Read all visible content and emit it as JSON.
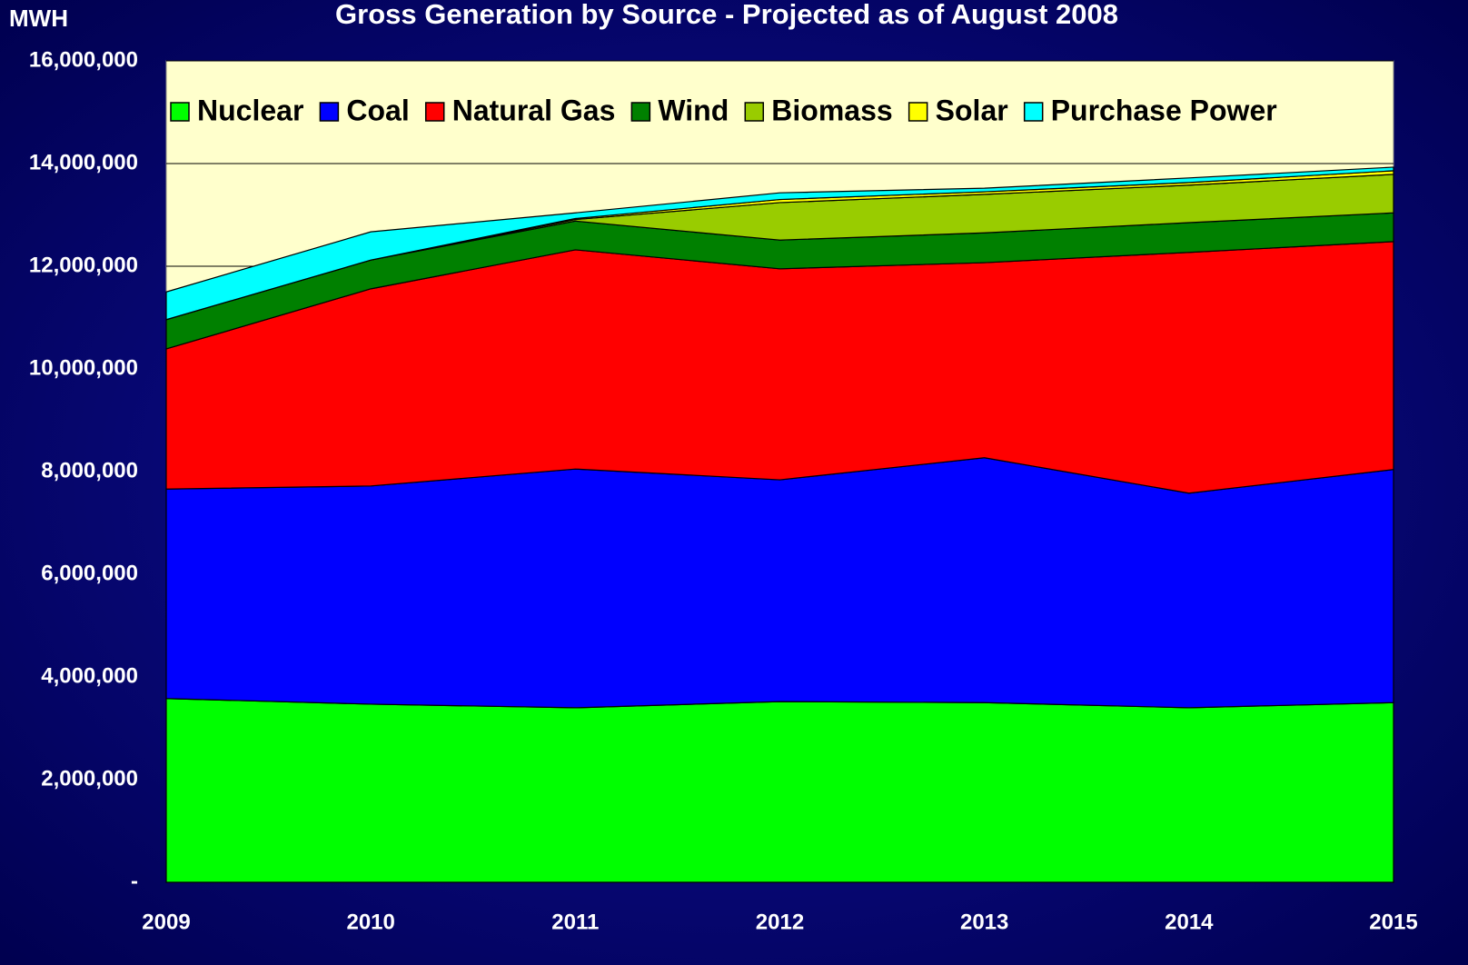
{
  "chart_data": {
    "type": "stacked_area",
    "title": "Gross Generation by Source - Projected as of August 2008",
    "y_label": "MWH",
    "categories": [
      "2009",
      "2010",
      "2011",
      "2012",
      "2013",
      "2014",
      "2015"
    ],
    "series": [
      {
        "name": "Nuclear",
        "color": "#00ff00",
        "values": [
          3580000,
          3470000,
          3400000,
          3520000,
          3500000,
          3400000,
          3500000
        ]
      },
      {
        "name": "Coal",
        "color": "#0000ff",
        "values": [
          4080000,
          4250000,
          4650000,
          4320000,
          4770000,
          4180000,
          4540000
        ]
      },
      {
        "name": "Natural Gas",
        "color": "#ff0000",
        "values": [
          2730000,
          3840000,
          4270000,
          4110000,
          3800000,
          4690000,
          4440000
        ]
      },
      {
        "name": "Wind",
        "color": "#008000",
        "values": [
          570000,
          560000,
          560000,
          560000,
          580000,
          580000,
          560000
        ]
      },
      {
        "name": "Biomass",
        "color": "#99cc00",
        "values": [
          0,
          0,
          30000,
          730000,
          750000,
          730000,
          750000
        ]
      },
      {
        "name": "Solar",
        "color": "#ffff00",
        "values": [
          0,
          0,
          20000,
          60000,
          50000,
          50000,
          70000
        ]
      },
      {
        "name": "Purchase Power",
        "color": "#00ffff",
        "values": [
          540000,
          550000,
          110000,
          130000,
          70000,
          90000,
          70000
        ]
      }
    ],
    "ylim": [
      0,
      16000000
    ],
    "yticks": [
      {
        "value": 0,
        "label": "-"
      },
      {
        "value": 2000000,
        "label": "2,000,000"
      },
      {
        "value": 4000000,
        "label": "4,000,000"
      },
      {
        "value": 6000000,
        "label": "6,000,000"
      },
      {
        "value": 8000000,
        "label": "8,000,000"
      },
      {
        "value": 10000000,
        "label": "10,000,000"
      },
      {
        "value": 12000000,
        "label": "12,000,000"
      },
      {
        "value": 14000000,
        "label": "14,000,000"
      },
      {
        "value": 16000000,
        "label": "16,000,000"
      }
    ],
    "grid": true,
    "legend": "top"
  }
}
